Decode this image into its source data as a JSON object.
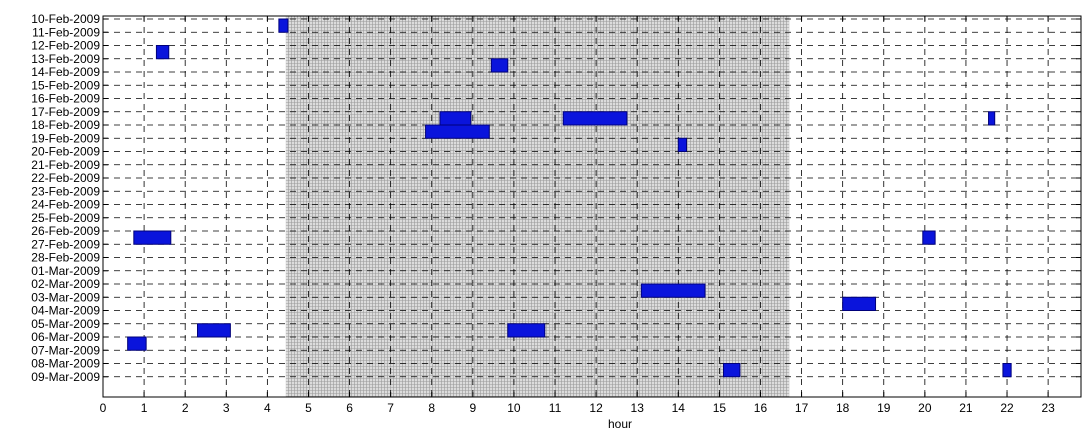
{
  "chart_data": {
    "type": "gantt",
    "xlabel": "hour",
    "xlim": [
      0,
      23.8
    ],
    "xticks": [
      0,
      1,
      2,
      3,
      4,
      5,
      6,
      7,
      8,
      9,
      10,
      11,
      12,
      13,
      14,
      15,
      16,
      17,
      18,
      19,
      20,
      21,
      22,
      23
    ],
    "grid": "dashed",
    "shaded_region": {
      "x_start": 4.45,
      "x_end": 16.7,
      "style": "fine-grid gray"
    },
    "rows": [
      "10-Feb-2009",
      "11-Feb-2009",
      "12-Feb-2009",
      "13-Feb-2009",
      "14-Feb-2009",
      "15-Feb-2009",
      "16-Feb-2009",
      "17-Feb-2009",
      "18-Feb-2009",
      "19-Feb-2009",
      "20-Feb-2009",
      "21-Feb-2009",
      "22-Feb-2009",
      "23-Feb-2009",
      "24-Feb-2009",
      "25-Feb-2009",
      "26-Feb-2009",
      "27-Feb-2009",
      "28-Feb-2009",
      "01-Mar-2009",
      "02-Mar-2009",
      "03-Mar-2009",
      "04-Mar-2009",
      "05-Mar-2009",
      "06-Mar-2009",
      "07-Mar-2009",
      "08-Mar-2009",
      "09-Mar-2009"
    ],
    "bar_color": "#0a14dc",
    "bars": [
      {
        "row_from": 0.0,
        "row_to": 1.0,
        "x_start": 4.28,
        "x_end": 4.5
      },
      {
        "row_from": 2.0,
        "row_to": 3.0,
        "x_start": 1.3,
        "x_end": 1.6
      },
      {
        "row_from": 3.0,
        "row_to": 4.0,
        "x_start": 9.45,
        "x_end": 9.85
      },
      {
        "row_from": 7.0,
        "row_to": 8.0,
        "x_start": 8.2,
        "x_end": 8.95
      },
      {
        "row_from": 7.0,
        "row_to": 8.0,
        "x_start": 11.2,
        "x_end": 12.75
      },
      {
        "row_from": 8.0,
        "row_to": 9.0,
        "x_start": 7.85,
        "x_end": 9.4
      },
      {
        "row_from": 7.0,
        "row_to": 8.0,
        "x_start": 21.55,
        "x_end": 21.7
      },
      {
        "row_from": 9.0,
        "row_to": 10.0,
        "x_start": 14.0,
        "x_end": 14.2
      },
      {
        "row_from": 16.0,
        "row_to": 17.0,
        "x_start": 0.75,
        "x_end": 1.65
      },
      {
        "row_from": 16.0,
        "row_to": 17.0,
        "x_start": 19.95,
        "x_end": 20.25
      },
      {
        "row_from": 20.0,
        "row_to": 21.0,
        "x_start": 13.1,
        "x_end": 14.65
      },
      {
        "row_from": 21.0,
        "row_to": 22.0,
        "x_start": 18.0,
        "x_end": 18.8
      },
      {
        "row_from": 23.0,
        "row_to": 24.0,
        "x_start": 2.3,
        "x_end": 3.1
      },
      {
        "row_from": 23.0,
        "row_to": 24.0,
        "x_start": 9.85,
        "x_end": 10.75
      },
      {
        "row_from": 24.0,
        "row_to": 25.0,
        "x_start": 0.6,
        "x_end": 1.05
      },
      {
        "row_from": 26.0,
        "row_to": 27.0,
        "x_start": 15.1,
        "x_end": 15.5
      },
      {
        "row_from": 26.0,
        "row_to": 27.0,
        "x_start": 21.9,
        "x_end": 22.1
      }
    ]
  }
}
